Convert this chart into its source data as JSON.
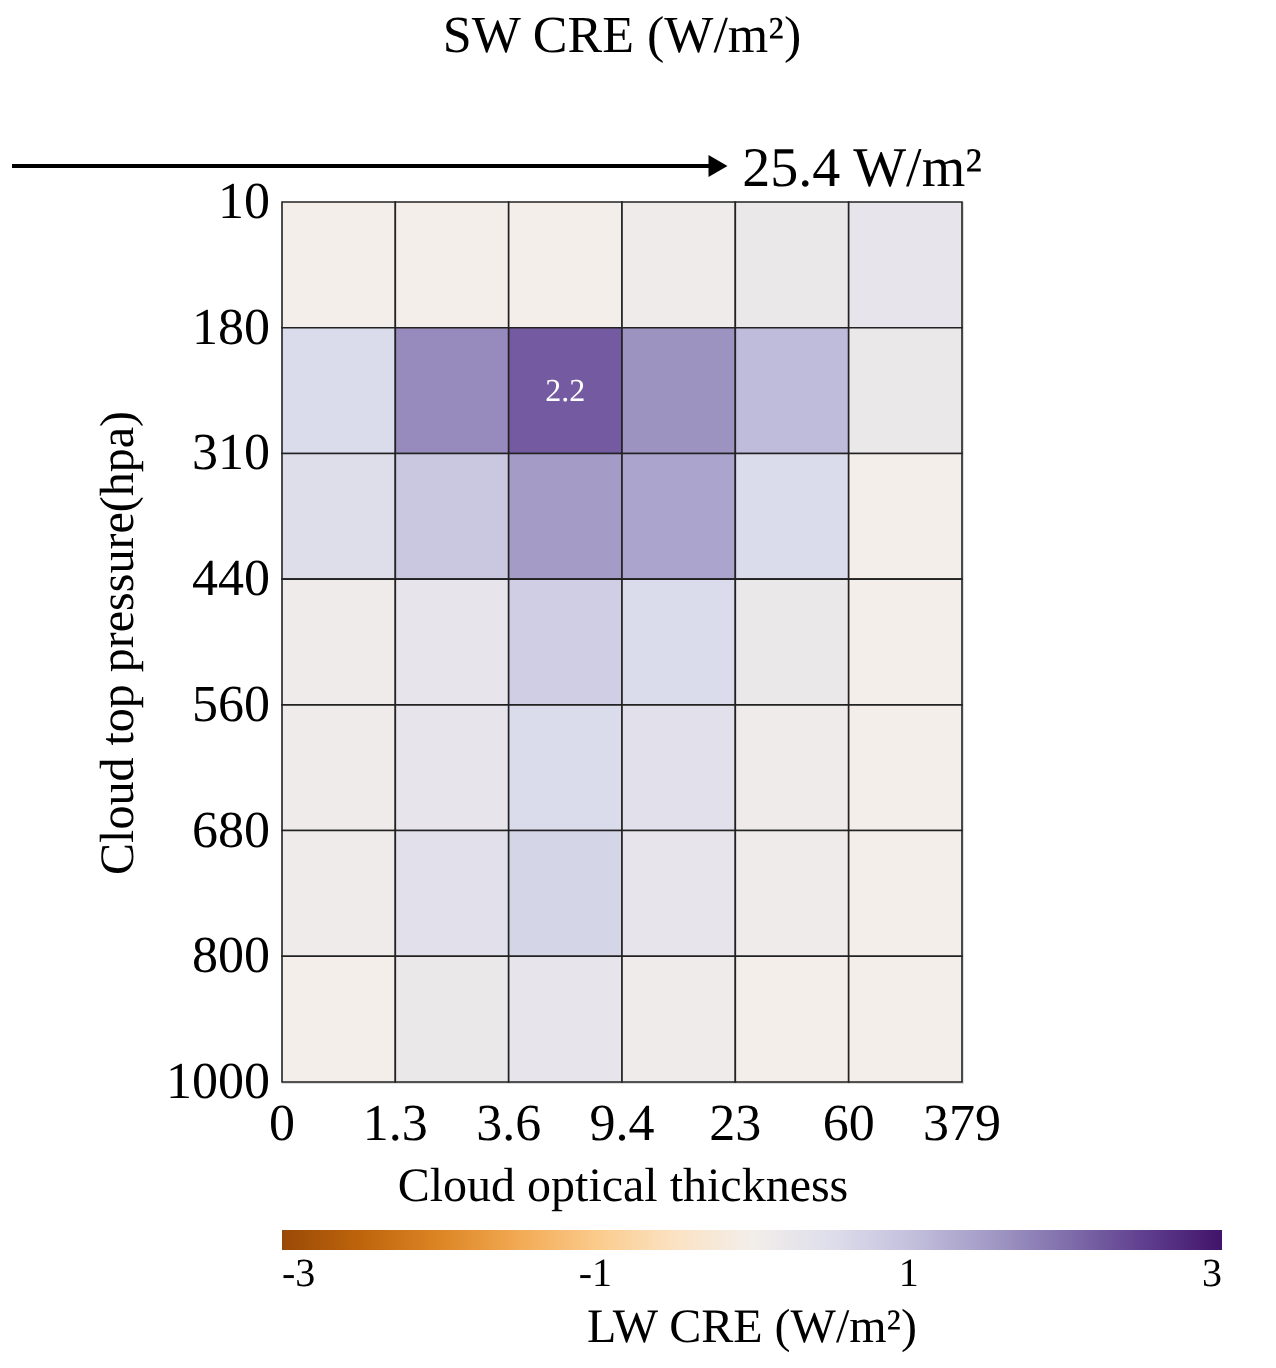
{
  "chart_data": {
    "type": "heatmap",
    "title": "SW CRE (W/m²)",
    "annotations": [
      "25.4 W/m²",
      "0",
      "1.3",
      "3.6",
      "9.4",
      "23",
      "60",
      "379",
      "10",
      "180",
      "310",
      "440",
      "560",
      "680",
      "800",
      "1000"
    ],
    "xlabel": "Cloud optical thickness",
    "ylabel": "Cloud top pressure(hpa)",
    "clabel": "LW CRE (W/m²)",
    "categories": [
      null,
      null,
      null,
      null,
      null,
      null
    ],
    "y_categories": [
      null,
      null,
      null,
      null,
      null,
      null,
      null
    ],
    "cells": [
      [
        0,
        0,
        0,
        0.1,
        0.2,
        0.3
      ],
      [
        0.6,
        1.7,
        2.2,
        1.6,
        1.1,
        0.2
      ],
      [
        0.5,
        0.9,
        1.5,
        1.4,
        0.6,
        0
      ],
      [
        0.1,
        0.3,
        0.8,
        0.6,
        0.2,
        0
      ],
      [
        0.1,
        0.3,
        0.6,
        0.4,
        0.1,
        0
      ],
      [
        0.1,
        0.4,
        0.7,
        0.3,
        0.1,
        0
      ],
      [
        0,
        0.2,
        0.3,
        0.1,
        0,
        0
      ]
    ],
    "cell_labels": [
      [
        null,
        null,
        null,
        null,
        null,
        null
      ],
      [
        null,
        null,
        "2.2",
        null,
        null,
        null
      ],
      [
        null,
        null,
        null,
        null,
        null,
        null
      ],
      [
        null,
        null,
        null,
        null,
        null,
        null
      ],
      [
        null,
        null,
        null,
        null,
        null,
        null
      ],
      [
        null,
        null,
        null,
        null,
        null,
        null
      ],
      [
        null,
        null,
        null,
        null,
        null,
        null
      ]
    ],
    "clim": [
      -3,
      3
    ],
    "cticks": [
      -3,
      -1,
      1,
      3
    ]
  }
}
